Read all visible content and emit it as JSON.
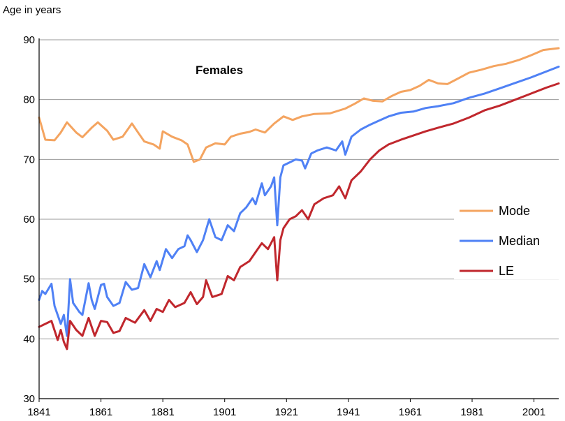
{
  "chart_data": {
    "type": "line",
    "title": "Females",
    "ylabel": "Age in years",
    "xlabel": "",
    "xlim": [
      1841,
      2009
    ],
    "ylim": [
      30,
      90
    ],
    "x_ticks": [
      "1841",
      "1861",
      "1881",
      "1901",
      "1921",
      "1941",
      "1961",
      "1981",
      "2001"
    ],
    "y_ticks": [
      "30",
      "40",
      "50",
      "60",
      "70",
      "80",
      "90"
    ],
    "grid": "horizontal",
    "legend": "right",
    "series": [
      {
        "name": "Mode",
        "color": "#f4a460",
        "points": [
          [
            1841,
            77.0
          ],
          [
            1843,
            73.3
          ],
          [
            1846,
            73.2
          ],
          [
            1848,
            74.5
          ],
          [
            1850,
            76.2
          ],
          [
            1853,
            74.5
          ],
          [
            1855,
            73.7
          ],
          [
            1858,
            75.3
          ],
          [
            1860,
            76.2
          ],
          [
            1863,
            74.8
          ],
          [
            1865,
            73.3
          ],
          [
            1868,
            73.8
          ],
          [
            1871,
            76.0
          ],
          [
            1873,
            74.5
          ],
          [
            1875,
            73.0
          ],
          [
            1878,
            72.5
          ],
          [
            1880,
            71.8
          ],
          [
            1881,
            74.7
          ],
          [
            1884,
            73.8
          ],
          [
            1887,
            73.2
          ],
          [
            1889,
            72.5
          ],
          [
            1891,
            69.6
          ],
          [
            1893,
            70.0
          ],
          [
            1895,
            72.0
          ],
          [
            1898,
            72.7
          ],
          [
            1901,
            72.5
          ],
          [
            1903,
            73.8
          ],
          [
            1906,
            74.3
          ],
          [
            1909,
            74.6
          ],
          [
            1911,
            75.0
          ],
          [
            1914,
            74.5
          ],
          [
            1917,
            76.0
          ],
          [
            1920,
            77.2
          ],
          [
            1923,
            76.6
          ],
          [
            1926,
            77.2
          ],
          [
            1930,
            77.6
          ],
          [
            1935,
            77.7
          ],
          [
            1940,
            78.5
          ],
          [
            1943,
            79.3
          ],
          [
            1946,
            80.2
          ],
          [
            1949,
            79.8
          ],
          [
            1952,
            79.7
          ],
          [
            1955,
            80.6
          ],
          [
            1958,
            81.3
          ],
          [
            1961,
            81.6
          ],
          [
            1964,
            82.3
          ],
          [
            1967,
            83.3
          ],
          [
            1970,
            82.7
          ],
          [
            1973,
            82.6
          ],
          [
            1976,
            83.4
          ],
          [
            1980,
            84.5
          ],
          [
            1984,
            85.0
          ],
          [
            1988,
            85.6
          ],
          [
            1992,
            86.0
          ],
          [
            1996,
            86.6
          ],
          [
            2000,
            87.4
          ],
          [
            2004,
            88.3
          ],
          [
            2009,
            88.6
          ]
        ]
      },
      {
        "name": "Median",
        "color": "#4f81f5",
        "points": [
          [
            1841,
            46.5
          ],
          [
            1842,
            48.0
          ],
          [
            1843,
            47.5
          ],
          [
            1845,
            49.2
          ],
          [
            1846,
            45.5
          ],
          [
            1848,
            42.5
          ],
          [
            1849,
            44.0
          ],
          [
            1850,
            40.5
          ],
          [
            1851,
            50.0
          ],
          [
            1852,
            46.0
          ],
          [
            1854,
            44.5
          ],
          [
            1855,
            44.0
          ],
          [
            1857,
            49.3
          ],
          [
            1858,
            46.5
          ],
          [
            1859,
            45.0
          ],
          [
            1861,
            49.0
          ],
          [
            1862,
            49.2
          ],
          [
            1863,
            47.0
          ],
          [
            1865,
            45.5
          ],
          [
            1867,
            46.0
          ],
          [
            1869,
            49.5
          ],
          [
            1871,
            48.2
          ],
          [
            1873,
            48.5
          ],
          [
            1875,
            52.5
          ],
          [
            1877,
            50.3
          ],
          [
            1879,
            53.0
          ],
          [
            1880,
            51.5
          ],
          [
            1882,
            55.0
          ],
          [
            1884,
            53.5
          ],
          [
            1886,
            55.0
          ],
          [
            1888,
            55.5
          ],
          [
            1889,
            57.3
          ],
          [
            1890,
            56.5
          ],
          [
            1892,
            54.5
          ],
          [
            1894,
            56.5
          ],
          [
            1896,
            60.0
          ],
          [
            1898,
            57.0
          ],
          [
            1900,
            56.5
          ],
          [
            1902,
            59.0
          ],
          [
            1904,
            58.0
          ],
          [
            1906,
            61.0
          ],
          [
            1908,
            62.0
          ],
          [
            1910,
            63.5
          ],
          [
            1911,
            62.5
          ],
          [
            1913,
            66.0
          ],
          [
            1914,
            64.0
          ],
          [
            1916,
            65.5
          ],
          [
            1917,
            67.0
          ],
          [
            1918,
            59.0
          ],
          [
            1919,
            67.0
          ],
          [
            1920,
            69.0
          ],
          [
            1922,
            69.5
          ],
          [
            1924,
            70.0
          ],
          [
            1926,
            69.8
          ],
          [
            1927,
            68.5
          ],
          [
            1929,
            71.0
          ],
          [
            1931,
            71.5
          ],
          [
            1934,
            72.0
          ],
          [
            1937,
            71.5
          ],
          [
            1939,
            73.0
          ],
          [
            1940,
            70.8
          ],
          [
            1942,
            73.8
          ],
          [
            1945,
            75.0
          ],
          [
            1948,
            75.8
          ],
          [
            1951,
            76.5
          ],
          [
            1954,
            77.2
          ],
          [
            1958,
            77.8
          ],
          [
            1962,
            78.0
          ],
          [
            1966,
            78.6
          ],
          [
            1970,
            78.9
          ],
          [
            1975,
            79.4
          ],
          [
            1980,
            80.3
          ],
          [
            1985,
            81.0
          ],
          [
            1990,
            81.9
          ],
          [
            1995,
            82.8
          ],
          [
            2000,
            83.7
          ],
          [
            2005,
            84.7
          ],
          [
            2009,
            85.5
          ]
        ]
      },
      {
        "name": "LE",
        "color": "#c0272d",
        "points": [
          [
            1841,
            42.0
          ],
          [
            1843,
            42.5
          ],
          [
            1845,
            43.0
          ],
          [
            1847,
            39.8
          ],
          [
            1848,
            41.5
          ],
          [
            1849,
            39.5
          ],
          [
            1850,
            38.3
          ],
          [
            1851,
            43.0
          ],
          [
            1853,
            41.5
          ],
          [
            1855,
            40.5
          ],
          [
            1857,
            43.5
          ],
          [
            1859,
            40.5
          ],
          [
            1861,
            43.0
          ],
          [
            1863,
            42.8
          ],
          [
            1865,
            41.0
          ],
          [
            1867,
            41.3
          ],
          [
            1869,
            43.5
          ],
          [
            1872,
            42.7
          ],
          [
            1875,
            44.8
          ],
          [
            1877,
            43.0
          ],
          [
            1879,
            45.0
          ],
          [
            1881,
            44.5
          ],
          [
            1883,
            46.5
          ],
          [
            1885,
            45.3
          ],
          [
            1888,
            46.0
          ],
          [
            1890,
            47.8
          ],
          [
            1892,
            45.8
          ],
          [
            1894,
            47.0
          ],
          [
            1895,
            49.8
          ],
          [
            1897,
            47.0
          ],
          [
            1900,
            47.5
          ],
          [
            1902,
            50.5
          ],
          [
            1904,
            49.8
          ],
          [
            1906,
            52.0
          ],
          [
            1909,
            53.0
          ],
          [
            1911,
            54.5
          ],
          [
            1913,
            56.0
          ],
          [
            1915,
            55.0
          ],
          [
            1917,
            57.0
          ],
          [
            1918,
            49.8
          ],
          [
            1919,
            56.5
          ],
          [
            1920,
            58.5
          ],
          [
            1922,
            60.0
          ],
          [
            1924,
            60.5
          ],
          [
            1926,
            61.5
          ],
          [
            1928,
            60.0
          ],
          [
            1930,
            62.5
          ],
          [
            1933,
            63.5
          ],
          [
            1936,
            64.0
          ],
          [
            1938,
            65.5
          ],
          [
            1940,
            63.5
          ],
          [
            1942,
            66.5
          ],
          [
            1945,
            68.0
          ],
          [
            1948,
            70.0
          ],
          [
            1951,
            71.5
          ],
          [
            1954,
            72.5
          ],
          [
            1958,
            73.3
          ],
          [
            1962,
            74.0
          ],
          [
            1966,
            74.7
          ],
          [
            1970,
            75.3
          ],
          [
            1975,
            76.0
          ],
          [
            1980,
            77.0
          ],
          [
            1985,
            78.2
          ],
          [
            1990,
            79.0
          ],
          [
            1995,
            80.0
          ],
          [
            2000,
            81.0
          ],
          [
            2005,
            82.0
          ],
          [
            2009,
            82.7
          ]
        ]
      }
    ]
  }
}
